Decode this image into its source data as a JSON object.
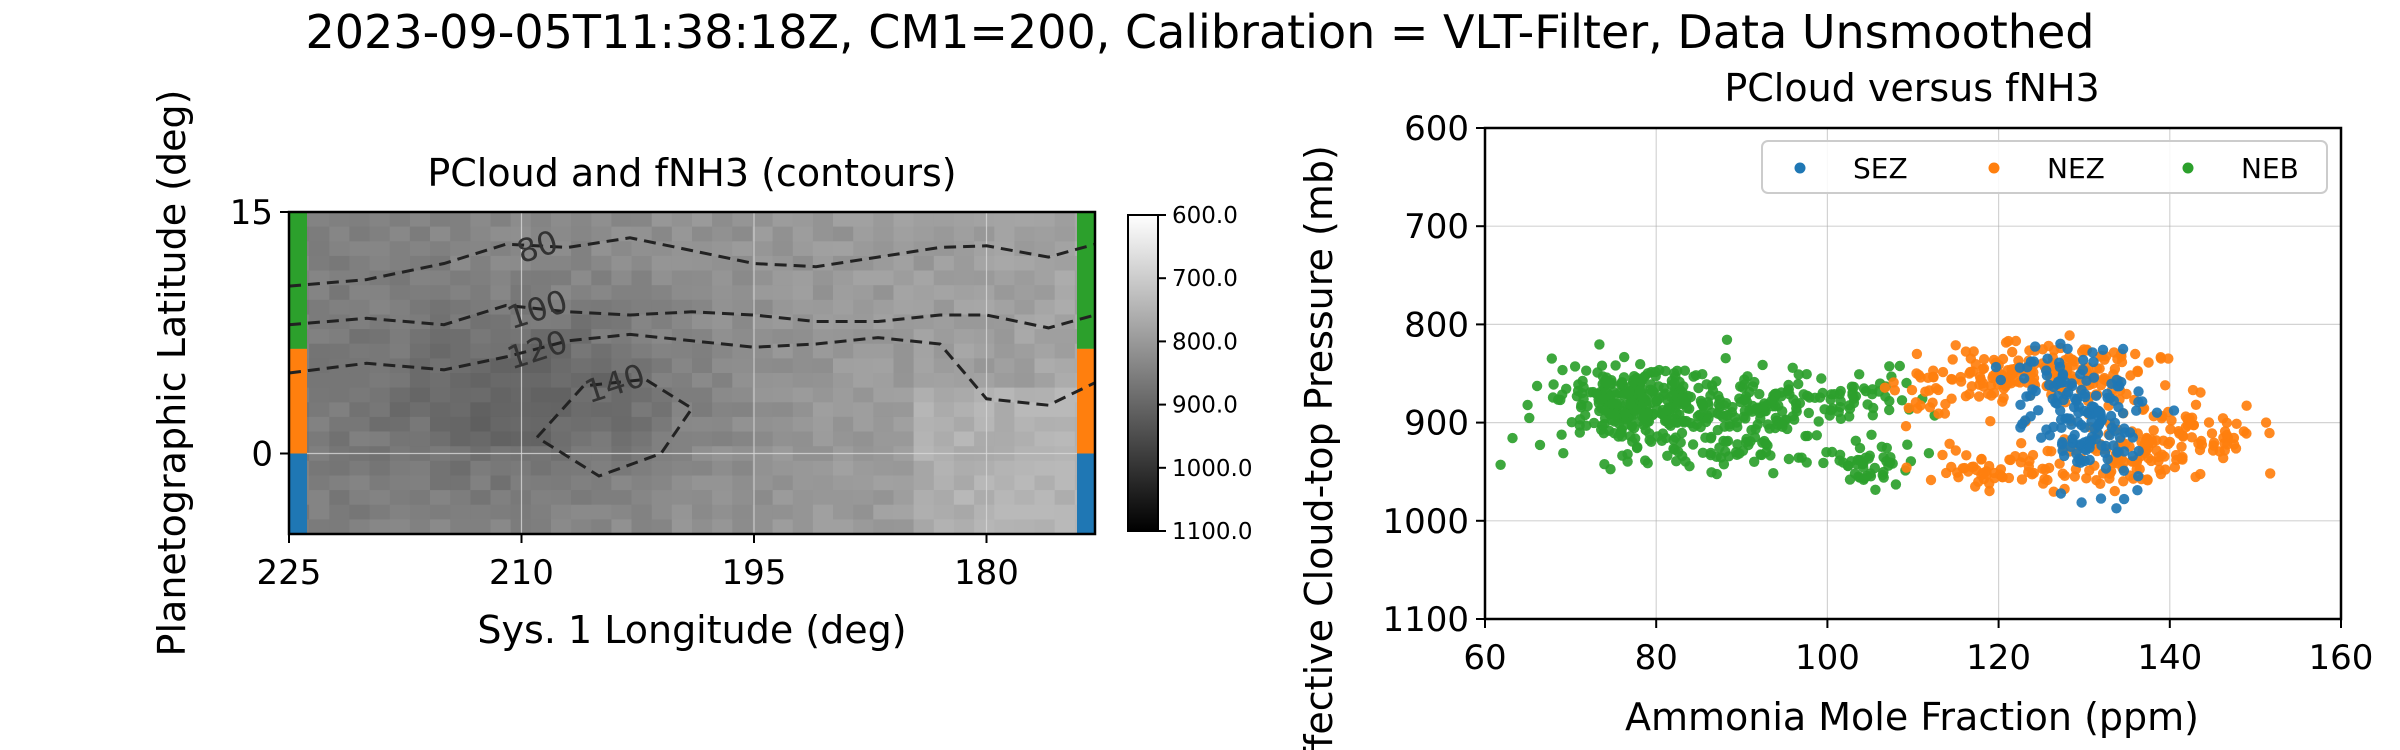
{
  "suptitle": "2023-09-05T11:38:18Z, CM1=200, Calibration = VLT-Filter, Data Unsmoothed",
  "chart_data": [
    {
      "type": "heatmap",
      "title": "PCloud and fNH3 (contours)",
      "xlabel": "Sys. 1 Longitude (deg)",
      "ylabel": "Planetographic Latitude (deg)",
      "xlim": [
        225,
        173
      ],
      "ylim": [
        -5,
        15
      ],
      "xticks": [
        "225",
        "210",
        "195",
        "180"
      ],
      "yticks": [
        "15",
        "0"
      ],
      "grid": true,
      "colorbar": {
        "colormap": "gray",
        "range": [
          600,
          1100
        ],
        "inverted": true,
        "ticks": [
          "600.0",
          "700.0",
          "800.0",
          "900.0",
          "1000.0",
          "1100.0"
        ]
      },
      "contour_levels": [
        {
          "label": "80",
          "lon": [
            225,
            220,
            215,
            211,
            207,
            203,
            199,
            195,
            191,
            187,
            183,
            180,
            176,
            173
          ],
          "lat": [
            10.4,
            10.8,
            11.8,
            13.0,
            12.8,
            13.4,
            12.6,
            11.8,
            11.6,
            12.2,
            12.8,
            12.9,
            12.2,
            13.0
          ]
        },
        {
          "label": "100",
          "lon": [
            225,
            220,
            215,
            211,
            207,
            203,
            199,
            195,
            191,
            187,
            183,
            180,
            176,
            173
          ],
          "lat": [
            8.0,
            8.4,
            8.0,
            9.2,
            8.8,
            8.6,
            8.8,
            8.6,
            8.2,
            8.2,
            8.6,
            8.6,
            7.8,
            8.6
          ]
        },
        {
          "label": "120",
          "lon": [
            225,
            220,
            215,
            211,
            207,
            203,
            199,
            195,
            191,
            187,
            183,
            180,
            176,
            173
          ],
          "lat": [
            5.0,
            5.6,
            5.2,
            6.0,
            7.0,
            7.4,
            7.0,
            6.6,
            6.8,
            7.2,
            6.8,
            3.4,
            3.0,
            4.4
          ]
        },
        {
          "label": "140",
          "lon": [
            209,
            206,
            202,
            199,
            201,
            205,
            209
          ],
          "lat": [
            1.0,
            4.2,
            4.6,
            2.8,
            0.0,
            -1.4,
            1.0
          ]
        }
      ],
      "zone_bands": [
        {
          "name": "NEB",
          "color": "#2ca02c",
          "lat": [
            6.5,
            15
          ]
        },
        {
          "name": "NEZ",
          "color": "#ff7f0e",
          "lat": [
            0,
            6.5
          ]
        },
        {
          "name": "SEZ",
          "color": "#1f77b4",
          "lat": [
            -5,
            0
          ]
        }
      ]
    },
    {
      "type": "scatter",
      "title": "PCloud versus fNH3",
      "xlabel": "Ammonia Mole Fraction (ppm)",
      "ylabel": "Effective Cloud-top Pressure (mb)",
      "xlim": [
        60,
        160
      ],
      "ylim": [
        1100,
        600
      ],
      "xticks": [
        "60",
        "80",
        "100",
        "120",
        "140",
        "160"
      ],
      "yticks": [
        "600",
        "700",
        "800",
        "900",
        "1000",
        "1100"
      ],
      "grid": true,
      "legend_position": "top-right",
      "series": [
        {
          "name": "SEZ",
          "color": "#1f77b4",
          "clusters": [
            {
              "cx": 131,
              "cy": 900,
              "sx": 3.2,
              "sy": 30,
              "n": 120
            },
            {
              "cx": 127,
              "cy": 860,
              "sx": 3,
              "sy": 18,
              "n": 50
            }
          ]
        },
        {
          "name": "NEZ",
          "color": "#ff7f0e",
          "clusters": [
            {
              "cx": 125,
              "cy": 848,
              "sx": 6.5,
              "sy": 14,
              "n": 180
            },
            {
              "cx": 136,
              "cy": 930,
              "sx": 6,
              "sy": 18,
              "n": 130
            },
            {
              "cx": 120,
              "cy": 948,
              "sx": 4.5,
              "sy": 9,
              "n": 50
            },
            {
              "cx": 143,
              "cy": 905,
              "sx": 3,
              "sy": 16,
              "n": 40
            },
            {
              "cx": 113,
              "cy": 870,
              "sx": 3.5,
              "sy": 15,
              "n": 25
            }
          ]
        },
        {
          "name": "NEB",
          "color": "#2ca02c",
          "clusters": [
            {
              "cx": 78,
              "cy": 878,
              "sx": 4.5,
              "sy": 17,
              "n": 280
            },
            {
              "cx": 92,
              "cy": 880,
              "sx": 6.5,
              "sy": 16,
              "n": 140
            },
            {
              "cx": 88,
              "cy": 930,
              "sx": 10,
              "sy": 12,
              "n": 90
            },
            {
              "cx": 104,
              "cy": 945,
              "sx": 2.5,
              "sy": 10,
              "n": 35
            },
            {
              "cx": 104,
              "cy": 870,
              "sx": 3,
              "sy": 15,
              "n": 30
            }
          ]
        }
      ]
    }
  ]
}
